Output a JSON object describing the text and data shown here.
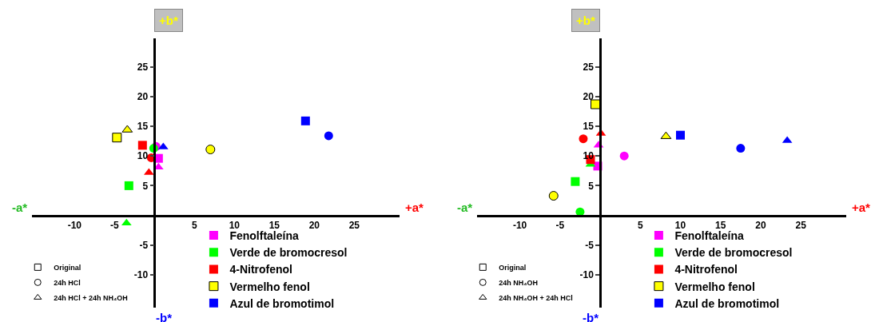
{
  "chart_data": [
    {
      "type": "scatter",
      "xlim": [
        -15.3,
        30.7
      ],
      "ylim": [
        -15.5,
        29.8
      ],
      "xticks": [
        -10,
        -5,
        5,
        10,
        15,
        20,
        25
      ],
      "yticks": [
        -10,
        -5,
        5,
        10,
        15,
        20,
        25
      ],
      "legend": "bottom",
      "annotations": [
        "+b*",
        "-b*",
        "-a*",
        "+a*"
      ],
      "series": [
        {
          "name": "Fenolftaleína",
          "color": "#ff00ff",
          "marker": [
            "square",
            "circle",
            "triangle"
          ],
          "x": [
            0.5,
            0.2,
            0.5
          ],
          "values": [
            9.6,
            11.6,
            8.1
          ]
        },
        {
          "name": "Verde de bromocresol",
          "color": "#00ff00",
          "marker": [
            "square",
            "circle",
            "triangle"
          ],
          "x": [
            -3.2,
            -0.1,
            -3.5
          ],
          "values": [
            5.0,
            11.3,
            -1.3
          ]
        },
        {
          "name": "4-Nitrofenol",
          "color": "#ff0000",
          "marker": [
            "square",
            "circle",
            "triangle"
          ],
          "x": [
            -1.5,
            -0.4,
            -0.7
          ],
          "values": [
            11.8,
            9.7,
            7.2
          ]
        },
        {
          "name": "Vermelho fenol",
          "color": "#ffff00",
          "marker": [
            "square",
            "circle",
            "triangle"
          ],
          "x": [
            -4.7,
            7.0,
            -3.4
          ],
          "values": [
            13.1,
            11.1,
            14.4
          ]
        },
        {
          "name": "Azul de bromotimol",
          "color": "#0000ff",
          "marker": [
            "square",
            "circle",
            "triangle"
          ],
          "x": [
            18.9,
            21.8,
            1.1
          ],
          "values": [
            15.9,
            13.4,
            11.5
          ]
        },
        {
          "name": "Original",
          "color": "#ffffff",
          "marker": "square"
        },
        {
          "name": "24h HCl",
          "color": "#ffffff",
          "marker": "circle"
        },
        {
          "name": "24h HCl + 24h NH₄OH",
          "color": "#ffffff",
          "marker": "triangle"
        }
      ]
    },
    {
      "type": "scatter",
      "xlim": [
        -15.3,
        30.7
      ],
      "ylim": [
        -15.5,
        29.8
      ],
      "xticks": [
        -10,
        -5,
        5,
        10,
        15,
        20,
        25
      ],
      "yticks": [
        -10,
        -5,
        5,
        10,
        15,
        20,
        25
      ],
      "legend": "bottom",
      "annotations": [
        "+b*",
        "-b*",
        "-a*",
        "+a*"
      ],
      "series": [
        {
          "name": "Fenolftaleína",
          "color": "#ff00ff",
          "marker": [
            "square",
            "circle",
            "triangle"
          ],
          "x": [
            -0.3,
            3.0,
            -0.2
          ],
          "values": [
            8.3,
            10.0,
            11.8
          ]
        },
        {
          "name": "Verde de bromocresol",
          "color": "#00ff00",
          "marker": [
            "square",
            "circle",
            "triangle"
          ],
          "x": [
            -3.1,
            -2.5,
            -1.2
          ],
          "values": [
            5.7,
            0.6,
            8.6
          ]
        },
        {
          "name": "4-Nitrofenol",
          "color": "#ff0000",
          "marker": [
            "square",
            "circle",
            "triangle"
          ],
          "x": [
            -1.2,
            -2.1,
            0.1
          ],
          "values": [
            9.4,
            12.9,
            13.8
          ]
        },
        {
          "name": "Vermelho fenol",
          "color": "#ffff00",
          "marker": [
            "square",
            "circle",
            "triangle"
          ],
          "x": [
            -0.6,
            -5.8,
            8.2
          ],
          "values": [
            18.7,
            3.3,
            13.3
          ]
        },
        {
          "name": "Azul de bromotimol",
          "color": "#0000ff",
          "marker": [
            "square",
            "circle",
            "triangle"
          ],
          "x": [
            10.0,
            17.5,
            23.3
          ],
          "values": [
            13.5,
            11.3,
            12.6
          ]
        },
        {
          "name": "Original",
          "color": "#ffffff",
          "marker": "square"
        },
        {
          "name": "24h NH₄OH",
          "color": "#ffffff",
          "marker": "circle"
        },
        {
          "name": "24h NH₄OH + 24h HCl",
          "color": "#ffffff",
          "marker": "triangle"
        }
      ]
    }
  ]
}
